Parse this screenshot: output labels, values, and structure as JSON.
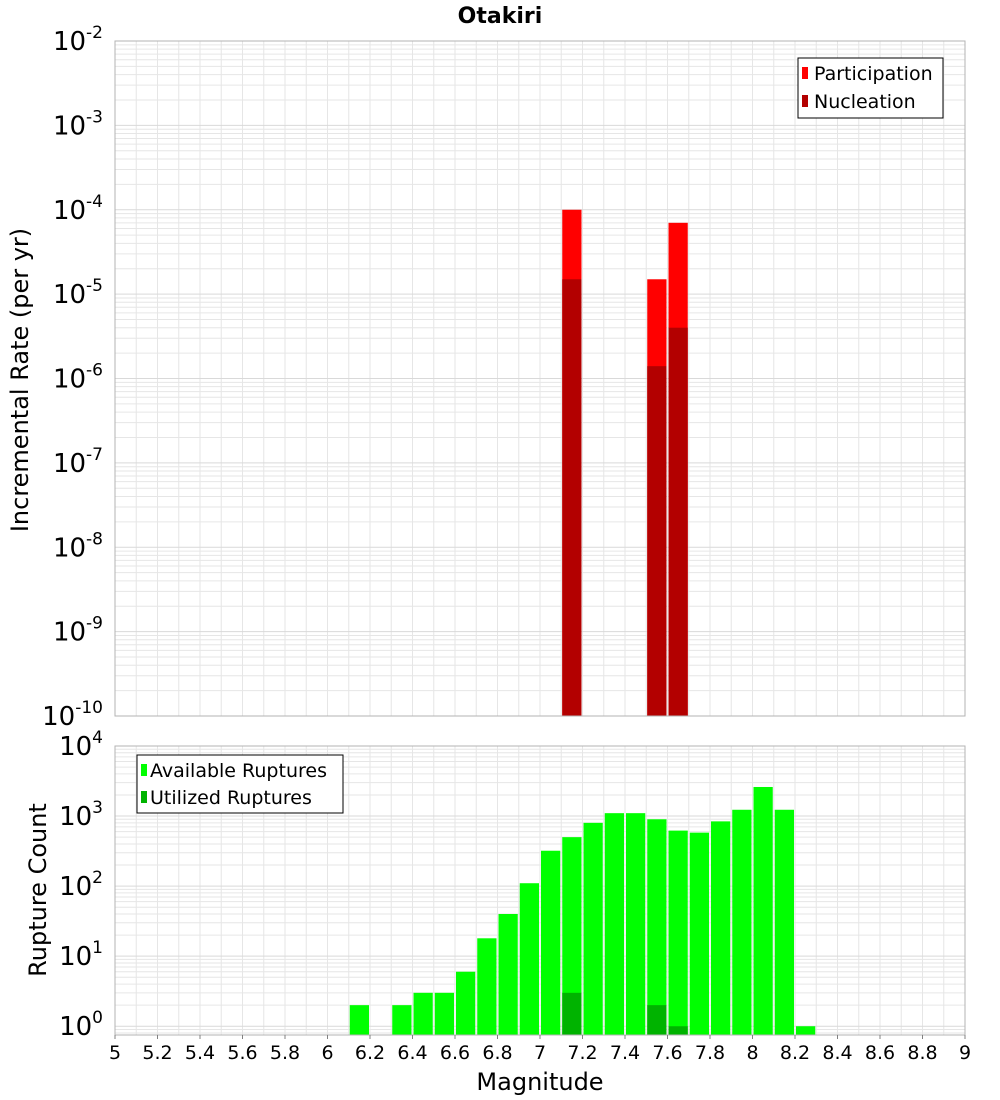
{
  "title": "Otakiri",
  "colors": {
    "participation": "#ff0000",
    "nucleation": "#b30000",
    "available": "#00ff00",
    "utilized": "#00b300",
    "grid": "#e6e6e6",
    "frame": "#b3b3b3"
  },
  "chart_data": [
    {
      "type": "bar",
      "panel": "top",
      "title": "Otakiri",
      "xlabel": "Magnitude",
      "ylabel": "Incremental Rate (per yr)",
      "yscale": "log",
      "xlim": [
        5,
        9
      ],
      "ylim": [
        1e-10,
        0.01
      ],
      "bin_width": 0.1,
      "y_ticks": [
        {
          "base": "10",
          "exp": "-2",
          "value": 0.01
        },
        {
          "base": "10",
          "exp": "-3",
          "value": 0.001
        },
        {
          "base": "10",
          "exp": "-4",
          "value": 0.0001
        },
        {
          "base": "10",
          "exp": "-5",
          "value": 1e-05
        },
        {
          "base": "10",
          "exp": "-6",
          "value": 1e-06
        },
        {
          "base": "10",
          "exp": "-7",
          "value": 1e-07
        },
        {
          "base": "10",
          "exp": "-8",
          "value": 1e-08
        },
        {
          "base": "10",
          "exp": "-9",
          "value": 1e-09
        },
        {
          "base": "10",
          "exp": "-10",
          "value": 1e-10
        }
      ],
      "legend": {
        "placement": "top-right",
        "entries": [
          "Participation",
          "Nucleation"
        ]
      },
      "grid": true,
      "series": [
        {
          "name": "Participation",
          "x": [
            7.15,
            7.55,
            7.65
          ],
          "values": [
            0.0001,
            1.5e-05,
            7e-05
          ]
        },
        {
          "name": "Nucleation",
          "x": [
            7.15,
            7.55,
            7.65
          ],
          "values": [
            1.5e-05,
            1.4e-06,
            4e-06
          ]
        }
      ]
    },
    {
      "type": "bar",
      "panel": "bottom",
      "xlabel": "Magnitude",
      "ylabel": "Rupture Count",
      "yscale": "log",
      "xlim": [
        5,
        9
      ],
      "ylim": [
        0.75,
        10000
      ],
      "bin_width": 0.1,
      "x_ticks": [
        "5",
        "5.2",
        "5.4",
        "5.6",
        "5.8",
        "6",
        "6.2",
        "6.4",
        "6.6",
        "6.8",
        "7",
        "7.2",
        "7.4",
        "7.6",
        "7.8",
        "8",
        "8.2",
        "8.4",
        "8.6",
        "8.8",
        "9"
      ],
      "y_ticks": [
        {
          "base": "10",
          "exp": "4",
          "value": 10000
        },
        {
          "base": "10",
          "exp": "3",
          "value": 1000
        },
        {
          "base": "10",
          "exp": "2",
          "value": 100
        },
        {
          "base": "10",
          "exp": "1",
          "value": 10
        },
        {
          "base": "10",
          "exp": "0",
          "value": 1
        }
      ],
      "legend": {
        "placement": "top-left",
        "entries": [
          "Available Ruptures",
          "Utilized Ruptures"
        ]
      },
      "grid": true,
      "series": [
        {
          "name": "Available Ruptures",
          "x": [
            6.15,
            6.35,
            6.45,
            6.55,
            6.65,
            6.75,
            6.85,
            6.95,
            7.05,
            7.15,
            7.25,
            7.35,
            7.45,
            7.55,
            7.65,
            7.75,
            7.85,
            7.95,
            8.05,
            8.15,
            8.25
          ],
          "values": [
            2,
            2,
            3,
            3,
            6,
            18,
            40,
            110,
            320,
            500,
            800,
            1100,
            1100,
            900,
            620,
            580,
            840,
            1230,
            2600,
            1230,
            1
          ]
        },
        {
          "name": "Utilized Ruptures",
          "x": [
            7.15,
            7.55,
            7.65
          ],
          "values": [
            3,
            2,
            1
          ]
        }
      ]
    }
  ]
}
